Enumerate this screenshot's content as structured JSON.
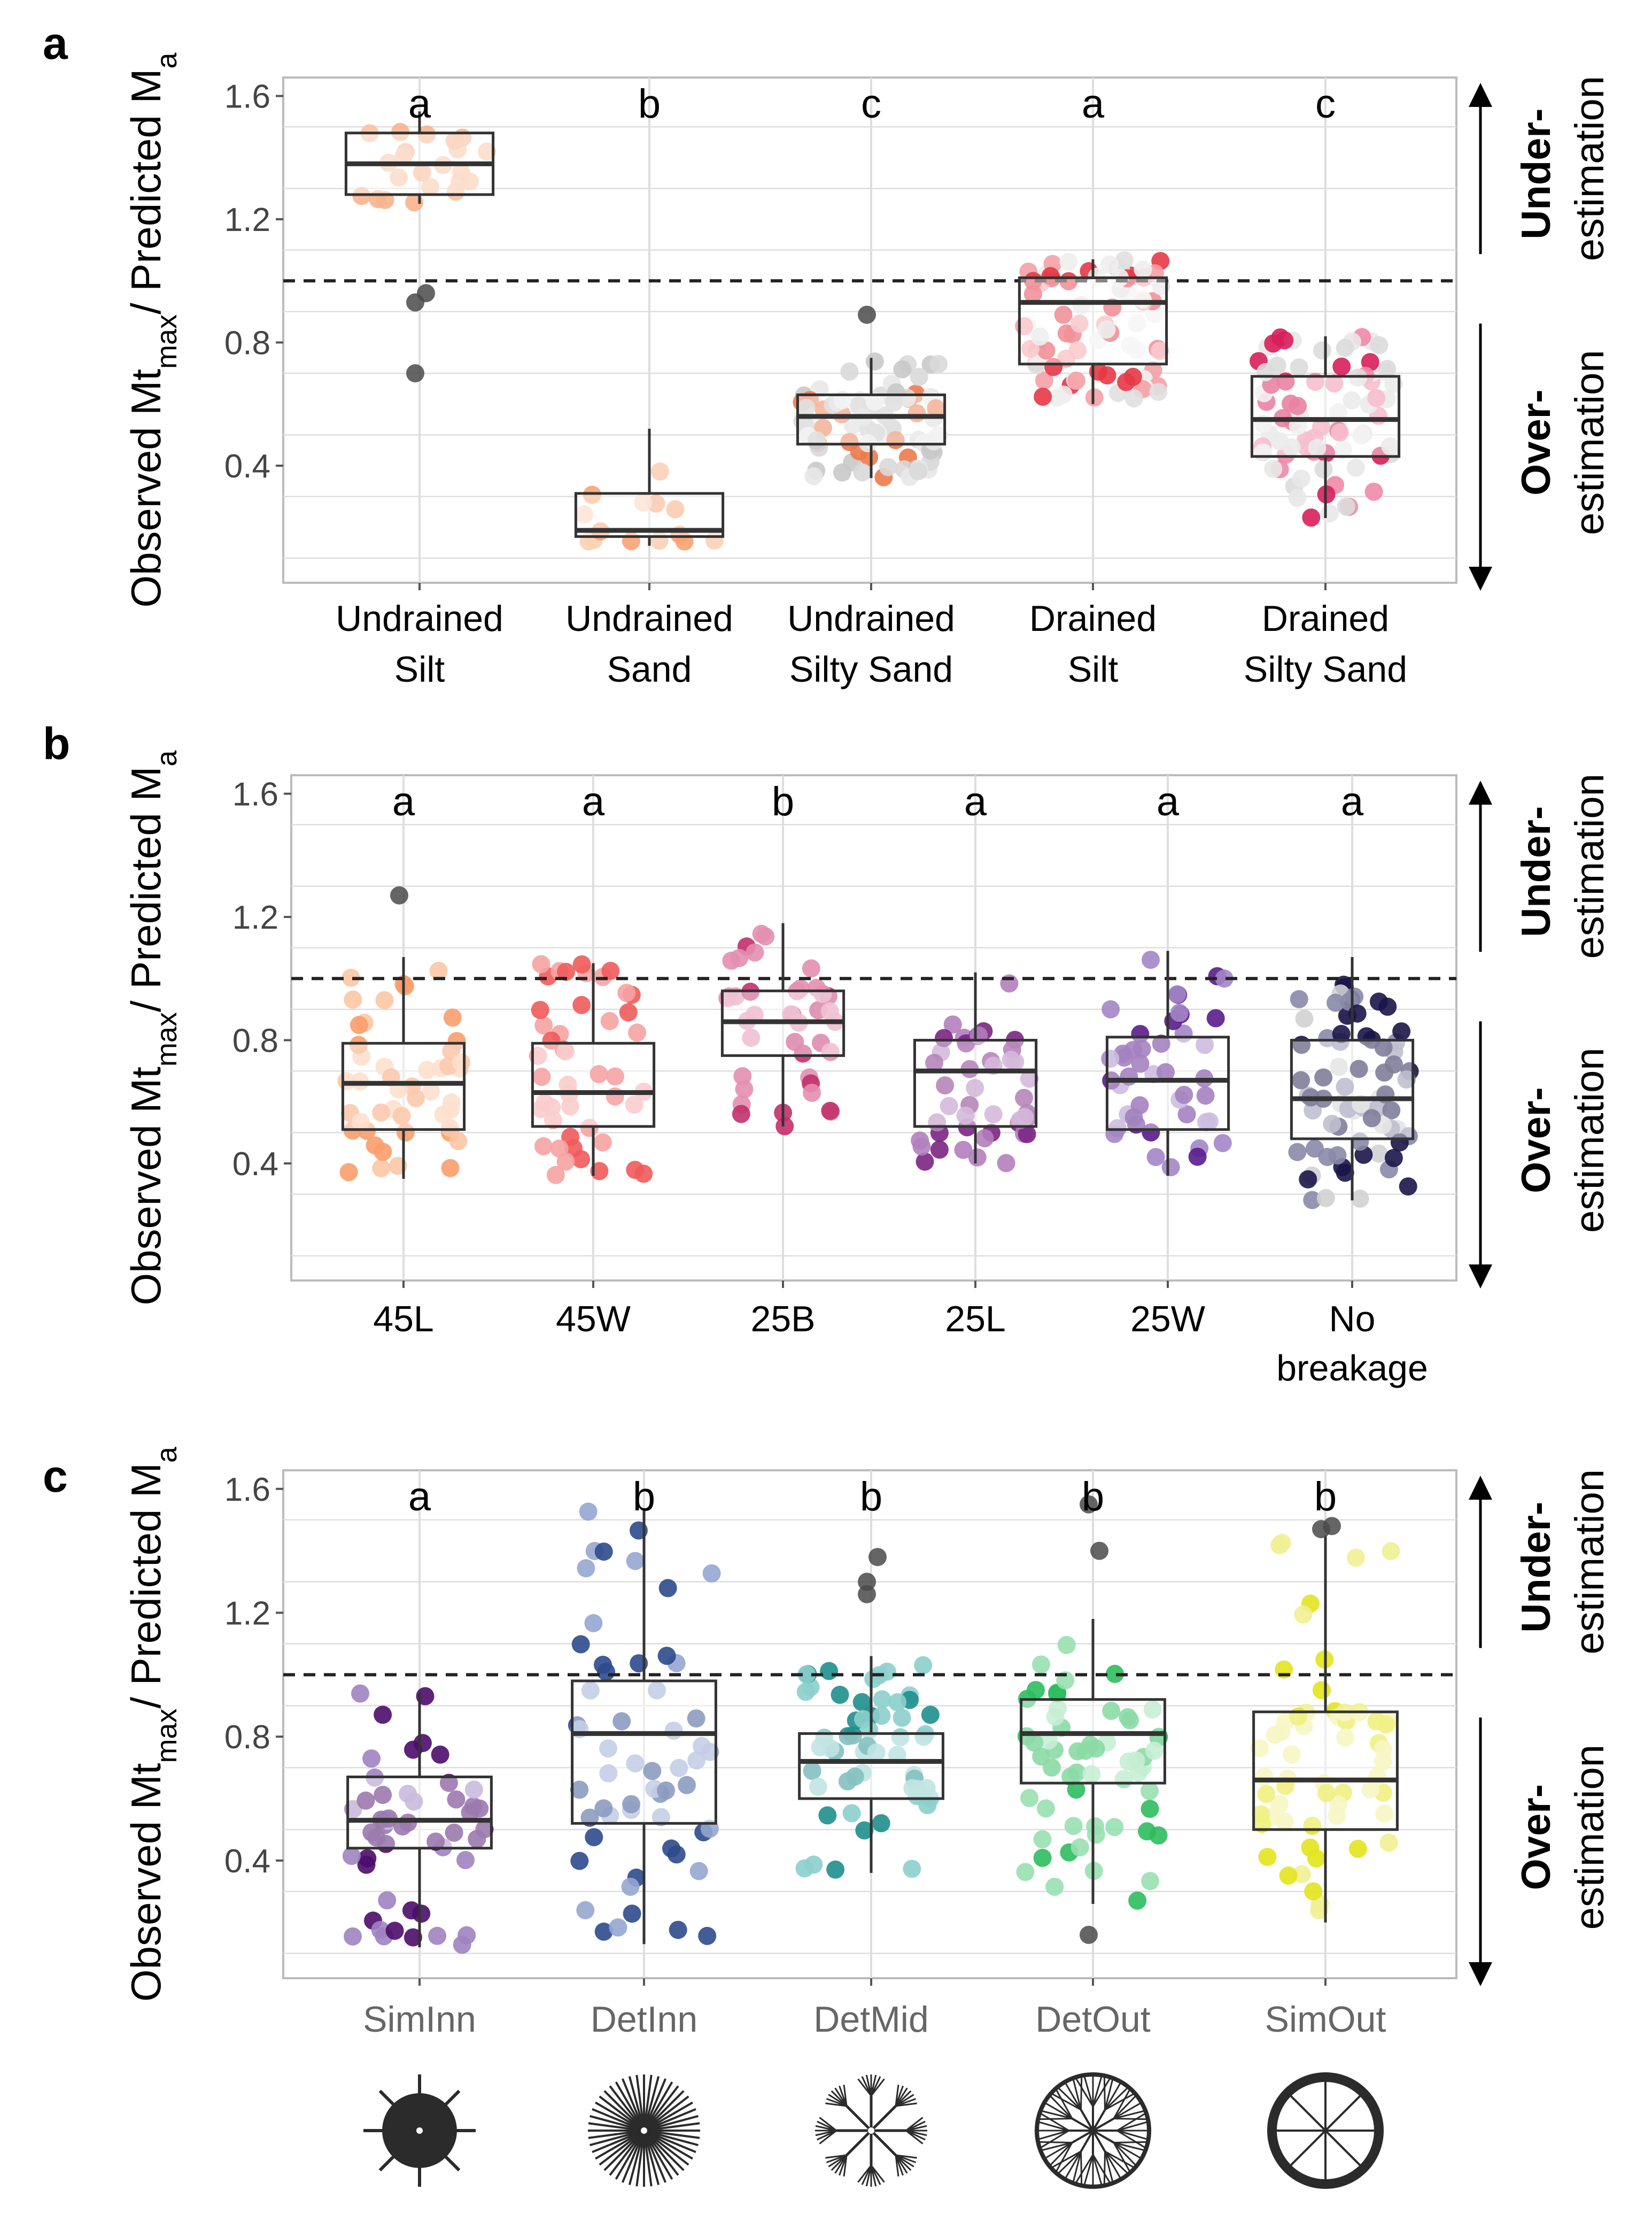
{
  "figure": {
    "y_axis_label_main": "Observed Mt",
    "y_axis_label_sub1": "max",
    "y_axis_label_mid": "/ Predicted M",
    "y_axis_label_sub2": "a",
    "under_label_bold": "Under-",
    "under_label_normal": "estimation",
    "over_label_bold": "Over-",
    "over_label_normal": "estimation",
    "colors": {
      "box_edge": "#333333",
      "grid": "#dedede",
      "panel_border": "#bbbbbb",
      "axis_text": "#444444",
      "arrow": "#000000"
    }
  },
  "chart_data": [
    {
      "id": "a",
      "panel_letter": "a",
      "type": "box",
      "ylim": [
        0.02,
        1.66
      ],
      "yticks": [
        0.4,
        0.8,
        1.2,
        1.6
      ],
      "ytick_labels": [
        "0.4",
        "0.8",
        "1.2",
        "1.6"
      ],
      "reference_line": 1.0,
      "grid": true,
      "categories": [
        "Undrained Silt",
        "Undrained Sand",
        "Undrained Silty Sand",
        "Drained Silt",
        "Drained Silty Sand"
      ],
      "xtick_lines": [
        [
          "Undrained",
          "Silt"
        ],
        [
          "Undrained",
          "Sand"
        ],
        [
          "Undrained",
          "Silty Sand"
        ],
        [
          "Drained",
          "Silt"
        ],
        [
          "Drained",
          "Silty Sand"
        ]
      ],
      "significance_letters": [
        "a",
        "b",
        "c",
        "a",
        "c"
      ],
      "box_stats": [
        {
          "whisker_low": 1.25,
          "q1": 1.28,
          "median": 1.38,
          "q3": 1.48,
          "whisker_high": 1.55
        },
        {
          "whisker_low": 0.14,
          "q1": 0.17,
          "median": 0.19,
          "q3": 0.31,
          "whisker_high": 0.52
        },
        {
          "whisker_low": 0.36,
          "q1": 0.47,
          "median": 0.56,
          "q3": 0.63,
          "whisker_high": 0.75
        },
        {
          "whisker_low": 0.6,
          "q1": 0.73,
          "median": 0.93,
          "q3": 1.01,
          "whisker_high": 1.07
        },
        {
          "whisker_low": 0.23,
          "q1": 0.43,
          "median": 0.55,
          "q3": 0.69,
          "whisker_high": 0.82
        }
      ],
      "point_colors": [
        [
          "#f8c2a2",
          "#f7b48e"
        ],
        [
          "#f8a274",
          "#fbd0b6"
        ],
        [
          "#ed7a4c",
          "#d9d9d9",
          "#e8e8e8",
          "#c9c9c9"
        ],
        [
          "#e63946",
          "#f5a0a5",
          "#e0e0e0",
          "#eeeeee"
        ],
        [
          "#d81e5b",
          "#ef8aa8",
          "#dcdcdc",
          "#e8e8e8"
        ]
      ],
      "point_counts": [
        22,
        14,
        80,
        80,
        80
      ],
      "outliers": [
        [
          0.93,
          0.96,
          0.7
        ],
        [],
        [
          0.89
        ],
        [],
        []
      ]
    },
    {
      "id": "b",
      "panel_letter": "b",
      "type": "box",
      "ylim": [
        0.02,
        1.66
      ],
      "yticks": [
        0.4,
        0.8,
        1.2,
        1.6
      ],
      "ytick_labels": [
        "0.4",
        "0.8",
        "1.2",
        "1.6"
      ],
      "reference_line": 1.0,
      "grid": true,
      "categories": [
        "45L",
        "45W",
        "25B",
        "25L",
        "25W",
        "No breakage"
      ],
      "xtick_lines": [
        [
          "45L"
        ],
        [
          "45W"
        ],
        [
          "25B"
        ],
        [
          "25L"
        ],
        [
          "25W"
        ],
        [
          "No",
          "breakage"
        ]
      ],
      "significance_letters": [
        "a",
        "a",
        "b",
        "a",
        "a",
        "a"
      ],
      "box_stats": [
        {
          "whisker_low": 0.35,
          "q1": 0.51,
          "median": 0.66,
          "q3": 0.79,
          "whisker_high": 1.07
        },
        {
          "whisker_low": 0.36,
          "q1": 0.52,
          "median": 0.63,
          "q3": 0.79,
          "whisker_high": 1.05
        },
        {
          "whisker_low": 0.52,
          "q1": 0.75,
          "median": 0.86,
          "q3": 0.96,
          "whisker_high": 1.18
        },
        {
          "whisker_low": 0.4,
          "q1": 0.52,
          "median": 0.7,
          "q3": 0.8,
          "whisker_high": 1.02
        },
        {
          "whisker_low": 0.36,
          "q1": 0.51,
          "median": 0.67,
          "q3": 0.81,
          "whisker_high": 1.09
        },
        {
          "whisker_low": 0.28,
          "q1": 0.48,
          "median": 0.61,
          "q3": 0.8,
          "whisker_high": 1.07
        }
      ],
      "point_colors": [
        [
          "#f99d6b",
          "#fbc6a4"
        ],
        [
          "#ef5b5b",
          "#f6a3a3"
        ],
        [
          "#c2306c",
          "#e38fb0"
        ],
        [
          "#7b2583",
          "#b37fbc"
        ],
        [
          "#5a1c8c",
          "#a386c7"
        ],
        [
          "#1b1548",
          "#8a8aa8",
          "#d2d2d2"
        ]
      ],
      "point_counts": [
        46,
        46,
        40,
        44,
        44,
        72
      ],
      "outliers": [
        [
          1.27
        ],
        [],
        [],
        [],
        [],
        []
      ]
    },
    {
      "id": "c",
      "panel_letter": "c",
      "type": "box",
      "ylim": [
        0.02,
        1.66
      ],
      "yticks": [
        0.4,
        0.8,
        1.2,
        1.6
      ],
      "ytick_labels": [
        "0.4",
        "0.8",
        "1.2",
        "1.6"
      ],
      "reference_line": 1.0,
      "grid": true,
      "categories": [
        "SimInn",
        "DetInn",
        "DetMid",
        "DetOut",
        "SimOut"
      ],
      "xtick_lines": [
        [
          "SimInn"
        ],
        [
          "DetInn"
        ],
        [
          "DetMid"
        ],
        [
          "DetOut"
        ],
        [
          "SimOut"
        ]
      ],
      "xtick_color": "#666666",
      "significance_letters": [
        "a",
        "b",
        "b",
        "b",
        "b"
      ],
      "box_stats": [
        {
          "whisker_low": 0.12,
          "q1": 0.44,
          "median": 0.53,
          "q3": 0.67,
          "whisker_high": 0.94
        },
        {
          "whisker_low": 0.13,
          "q1": 0.52,
          "median": 0.81,
          "q3": 0.98,
          "whisker_high": 1.53
        },
        {
          "whisker_low": 0.36,
          "q1": 0.6,
          "median": 0.72,
          "q3": 0.81,
          "whisker_high": 1.06
        },
        {
          "whisker_low": 0.26,
          "q1": 0.65,
          "median": 0.81,
          "q3": 0.92,
          "whisker_high": 1.18
        },
        {
          "whisker_low": 0.2,
          "q1": 0.5,
          "median": 0.66,
          "q3": 0.88,
          "whisker_high": 1.45
        }
      ],
      "point_colors": [
        [
          "#4b0c6b",
          "#9f83c1"
        ],
        [
          "#2d4a8c",
          "#95a6d0"
        ],
        [
          "#1f8f8c",
          "#8ccfcc"
        ],
        [
          "#2dbd5e",
          "#98e0b0"
        ],
        [
          "#e2e41c",
          "#f0f093"
        ]
      ],
      "point_counts": [
        50,
        56,
        56,
        58,
        58
      ],
      "outliers": [
        [],
        [],
        [
          1.3,
          1.38,
          1.26
        ],
        [
          1.55,
          1.4,
          0.16
        ],
        [
          1.47,
          1.48
        ]
      ],
      "glyph_icons": [
        "simple-inner-wheel-icon",
        "detailed-inner-wheel-icon",
        "detailed-middle-wheel-icon",
        "detailed-outer-wheel-icon",
        "simple-outer-wheel-icon"
      ]
    }
  ]
}
